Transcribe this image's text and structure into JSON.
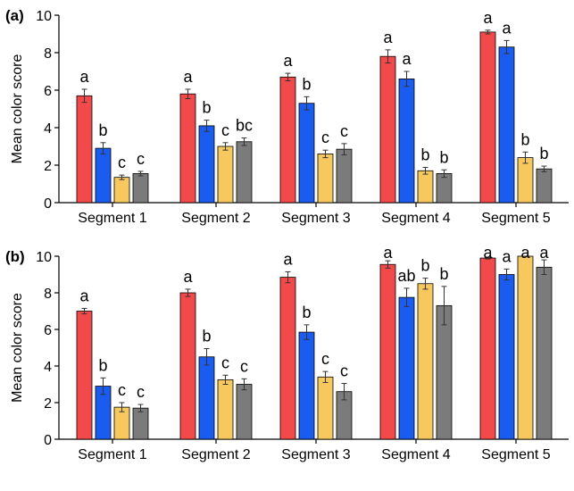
{
  "colors": [
    "#f24a4a",
    "#1a5cf0",
    "#f7c85e",
    "#7b7b7b"
  ],
  "chart_data": [
    {
      "type": "bar",
      "panel_label": "(a)",
      "ylabel": "Mean color score",
      "ylim": [
        0,
        10
      ],
      "yticks": [
        "0",
        "2",
        "4",
        "6",
        "8",
        "10"
      ],
      "categories": [
        "Segment 1",
        "Segment 2",
        "Segment 3",
        "Segment 4",
        "Segment 5"
      ],
      "series": [
        {
          "values": [
            5.7,
            5.8,
            6.7,
            7.8,
            9.1
          ],
          "errors": [
            0.35,
            0.25,
            0.2,
            0.35,
            0.1
          ],
          "letters": [
            "a",
            "a",
            "a",
            "a",
            "a"
          ]
        },
        {
          "values": [
            2.9,
            4.1,
            5.3,
            6.6,
            8.3
          ],
          "errors": [
            0.3,
            0.3,
            0.35,
            0.4,
            0.35
          ],
          "letters": [
            "b",
            "b",
            "b",
            "a",
            "a"
          ]
        },
        {
          "values": [
            1.35,
            3.0,
            2.6,
            1.7,
            2.4
          ],
          "errors": [
            0.12,
            0.2,
            0.2,
            0.18,
            0.3
          ],
          "letters": [
            "c",
            "c",
            "c",
            "b",
            "b"
          ]
        },
        {
          "values": [
            1.55,
            3.25,
            2.85,
            1.55,
            1.8
          ],
          "errors": [
            0.12,
            0.2,
            0.3,
            0.2,
            0.15
          ],
          "letters": [
            "c",
            "bc",
            "c",
            "b",
            "b"
          ]
        }
      ]
    },
    {
      "type": "bar",
      "panel_label": "(b)",
      "ylabel": "Mean color score",
      "ylim": [
        0,
        10
      ],
      "yticks": [
        "0",
        "2",
        "4",
        "6",
        "8",
        "10"
      ],
      "categories": [
        "Segment 1",
        "Segment 2",
        "Segment 3",
        "Segment 4",
        "Segment 5"
      ],
      "series": [
        {
          "values": [
            7.0,
            8.0,
            8.85,
            9.55,
            9.9
          ],
          "errors": [
            0.15,
            0.2,
            0.3,
            0.2,
            0.05
          ],
          "letters": [
            "a",
            "a",
            "a",
            "a",
            "a"
          ]
        },
        {
          "values": [
            2.9,
            4.5,
            5.85,
            7.75,
            9.0
          ],
          "errors": [
            0.45,
            0.45,
            0.4,
            0.5,
            0.3
          ],
          "letters": [
            "b",
            "b",
            "b",
            "ab",
            "a"
          ]
        },
        {
          "values": [
            1.75,
            3.25,
            3.4,
            8.5,
            10.0
          ],
          "errors": [
            0.25,
            0.25,
            0.3,
            0.3,
            0.0
          ],
          "letters": [
            "c",
            "c",
            "c",
            "b",
            "a"
          ]
        },
        {
          "values": [
            1.7,
            3.0,
            2.6,
            7.3,
            9.4
          ],
          "errors": [
            0.2,
            0.3,
            0.45,
            1.05,
            0.4
          ],
          "letters": [
            "c",
            "c",
            "c",
            "b",
            "a"
          ]
        }
      ]
    }
  ]
}
